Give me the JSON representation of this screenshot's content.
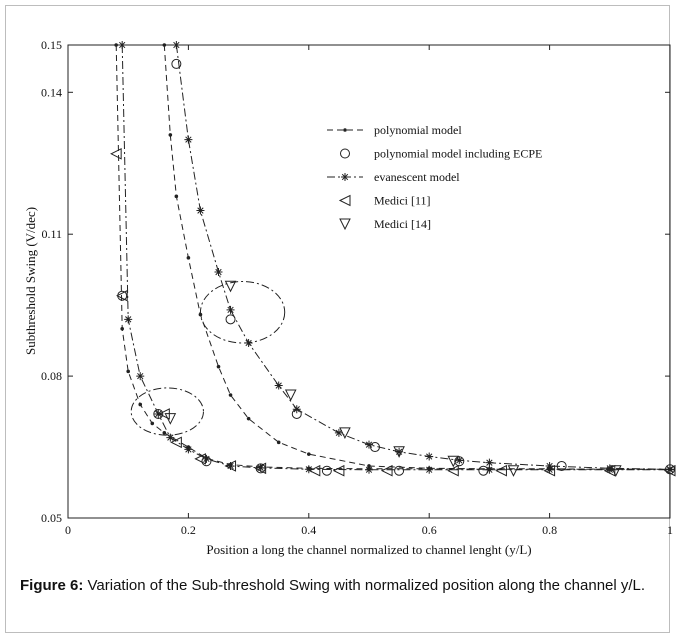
{
  "chart_data": {
    "type": "line",
    "xlabel": "Position a long the channel normalized to channel lenght (y/L)",
    "ylabel": "Subthreshold Swing (V/dec)",
    "xlim": [
      0,
      1
    ],
    "ylim": [
      0.05,
      0.15
    ],
    "x_ticks": [
      "0",
      "0.2",
      "0.4",
      "0.6",
      "0.8",
      "1"
    ],
    "y_ticks": [
      {
        "value": 0.05,
        "label": "0.05"
      },
      {
        "value": 0.08,
        "label": "0.08"
      },
      {
        "value": 0.11,
        "label": "0.11"
      },
      {
        "value": 0.14,
        "label": "0.14"
      },
      {
        "value": 0.15,
        "label": "0.15"
      }
    ],
    "grid": false,
    "legend_position": "upper-right",
    "series": [
      {
        "name": "polynomial model",
        "style": "dashed-dot-markers",
        "x": [
          0.08,
          0.09,
          0.1,
          0.12,
          0.14,
          0.16,
          0.2,
          0.23,
          0.27,
          0.32,
          0.4,
          0.5,
          0.6,
          0.7,
          0.8,
          0.9,
          1.0
        ],
        "y": [
          0.15,
          0.09,
          0.081,
          0.074,
          0.07,
          0.068,
          0.065,
          0.0626,
          0.0613,
          0.0608,
          0.0605,
          0.0604,
          0.0604,
          0.0603,
          0.0603,
          0.0603,
          0.0603
        ]
      },
      {
        "name": "polynomial model",
        "style": "dashed-dot-markers",
        "x": [
          0.16,
          0.17,
          0.18,
          0.2,
          0.22,
          0.25,
          0.27,
          0.3,
          0.35,
          0.4,
          0.5,
          0.6,
          0.7,
          0.8,
          0.9,
          1.0
        ],
        "y": [
          0.15,
          0.131,
          0.118,
          0.105,
          0.093,
          0.082,
          0.076,
          0.071,
          0.066,
          0.0635,
          0.061,
          0.0605,
          0.0604,
          0.0604,
          0.0603,
          0.0603
        ]
      },
      {
        "name": "polynomial model including ECPE",
        "style": "circles",
        "x": [
          0.09,
          0.15,
          0.18,
          0.23,
          0.27,
          0.32,
          0.38,
          0.43,
          0.51,
          0.55,
          0.65,
          0.69,
          0.82,
          1.0
        ],
        "y": [
          0.097,
          0.072,
          0.146,
          0.062,
          0.092,
          0.0605,
          0.072,
          0.06,
          0.065,
          0.06,
          0.062,
          0.06,
          0.061,
          0.0603
        ]
      },
      {
        "name": "evanescent model",
        "style": "dashdot-stars",
        "x": [
          0.18,
          0.2,
          0.22,
          0.25,
          0.27,
          0.3,
          0.35,
          0.38,
          0.45,
          0.5,
          0.55,
          0.6,
          0.65,
          0.7,
          0.8,
          0.9,
          1.0
        ],
        "y": [
          0.15,
          0.13,
          0.115,
          0.102,
          0.094,
          0.087,
          0.078,
          0.073,
          0.068,
          0.0655,
          0.064,
          0.063,
          0.0622,
          0.0617,
          0.061,
          0.0605,
          0.0603
        ]
      },
      {
        "name": "evanescent model",
        "style": "dashdot-stars",
        "x": [
          0.09,
          0.1,
          0.12,
          0.15,
          0.17,
          0.2,
          0.23,
          0.27,
          0.32,
          0.4,
          0.5,
          0.6,
          0.7,
          0.8,
          0.9,
          1.0
        ],
        "y": [
          0.15,
          0.092,
          0.08,
          0.072,
          0.067,
          0.0645,
          0.0625,
          0.061,
          0.0606,
          0.0603,
          0.0602,
          0.0602,
          0.0602,
          0.0602,
          0.0602,
          0.0602
        ]
      },
      {
        "name": "Medici [11]",
        "style": "left-triangles",
        "x": [
          0.08,
          0.09,
          0.16,
          0.18,
          0.22,
          0.27,
          0.32,
          0.41,
          0.45,
          0.53,
          0.64,
          0.72,
          0.8,
          0.9,
          1.0
        ],
        "y": [
          0.127,
          0.097,
          0.072,
          0.066,
          0.0625,
          0.061,
          0.0605,
          0.06,
          0.06,
          0.06,
          0.06,
          0.06,
          0.06,
          0.06,
          0.06
        ]
      },
      {
        "name": "Medici [14]",
        "style": "down-triangles",
        "x": [
          0.17,
          0.27,
          0.37,
          0.46,
          0.55,
          0.64,
          0.74,
          0.91
        ],
        "y": [
          0.071,
          0.099,
          0.076,
          0.068,
          0.064,
          0.062,
          0.06,
          0.06
        ]
      }
    ],
    "annotations": [
      {
        "shape": "ellipse",
        "cx": 0.29,
        "cy": 0.0935,
        "rx": 0.07,
        "ry": 0.0065
      },
      {
        "shape": "ellipse",
        "cx": 0.165,
        "cy": 0.0725,
        "rx": 0.06,
        "ry": 0.005
      }
    ]
  },
  "caption": {
    "label": "Figure 6:",
    "text": " Variation of the Sub-threshold Swing with normalized position along the channel y/L."
  }
}
